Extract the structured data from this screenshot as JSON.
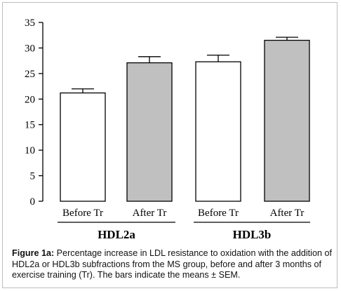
{
  "chart_data": {
    "type": "bar",
    "groups": [
      {
        "label": "HDL2a",
        "bars": [
          {
            "category": "Before Tr",
            "value": 21.2,
            "sem": 0.8,
            "fill": "#ffffff"
          },
          {
            "category": "After Tr",
            "value": 27.1,
            "sem": 1.2,
            "fill": "#c0c0c0"
          }
        ]
      },
      {
        "label": "HDL3b",
        "bars": [
          {
            "category": "Before Tr",
            "value": 27.3,
            "sem": 1.3,
            "fill": "#ffffff"
          },
          {
            "category": "After Tr",
            "value": 31.5,
            "sem": 0.6,
            "fill": "#c0c0c0"
          }
        ]
      }
    ],
    "ylim": [
      0,
      35
    ],
    "yticks": [
      "0",
      "5",
      "10",
      "15",
      "20",
      "25",
      "30",
      "35"
    ],
    "error_bars": "SEM",
    "legend": "none",
    "grid": false
  },
  "caption": {
    "label": "Figure 1a:",
    "text": " Percentage increase in LDL resistance to oxidation with the addition of HDL2a or HDL3b subfractions from the MS group, before and after 3 months of exercise training (Tr). The bars indicate the means ± SEM."
  },
  "colors": {
    "axis": "#000000",
    "bar_before": "#ffffff",
    "bar_after": "#c0c0c0",
    "border": "#bdbdbd"
  }
}
